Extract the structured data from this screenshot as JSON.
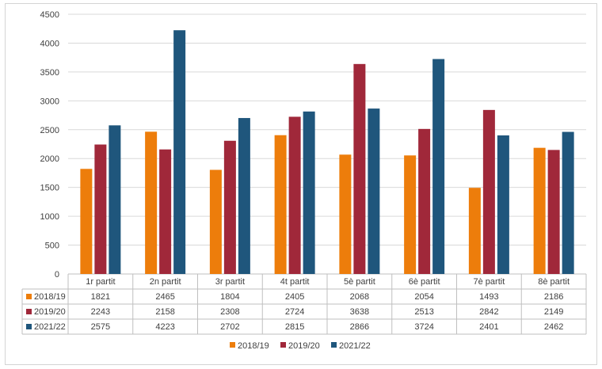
{
  "chart_data": {
    "type": "bar",
    "title": "",
    "xlabel": "",
    "ylabel": "",
    "ylim": [
      0,
      4500
    ],
    "yticks": [
      0,
      500,
      1000,
      1500,
      2000,
      2500,
      3000,
      3500,
      4000,
      4500
    ],
    "grid": true,
    "legend_position": "bottom",
    "data_table": true,
    "categories": [
      "1r partit",
      "2n partit",
      "3r partit",
      "4t partit",
      "5è partit",
      "6è partit",
      "7è partit",
      "8è partit"
    ],
    "series": [
      {
        "name": "2018/19",
        "color": "#ED7D0B",
        "values": [
          1821,
          2465,
          1804,
          2405,
          2068,
          2054,
          1493,
          2186
        ]
      },
      {
        "name": "2019/20",
        "color": "#A0283A",
        "values": [
          2243,
          2158,
          2308,
          2724,
          3638,
          2513,
          2842,
          2149
        ]
      },
      {
        "name": "2021/22",
        "color": "#1F567C",
        "values": [
          2575,
          4223,
          2702,
          2815,
          2866,
          3724,
          2401,
          2462
        ]
      }
    ]
  }
}
